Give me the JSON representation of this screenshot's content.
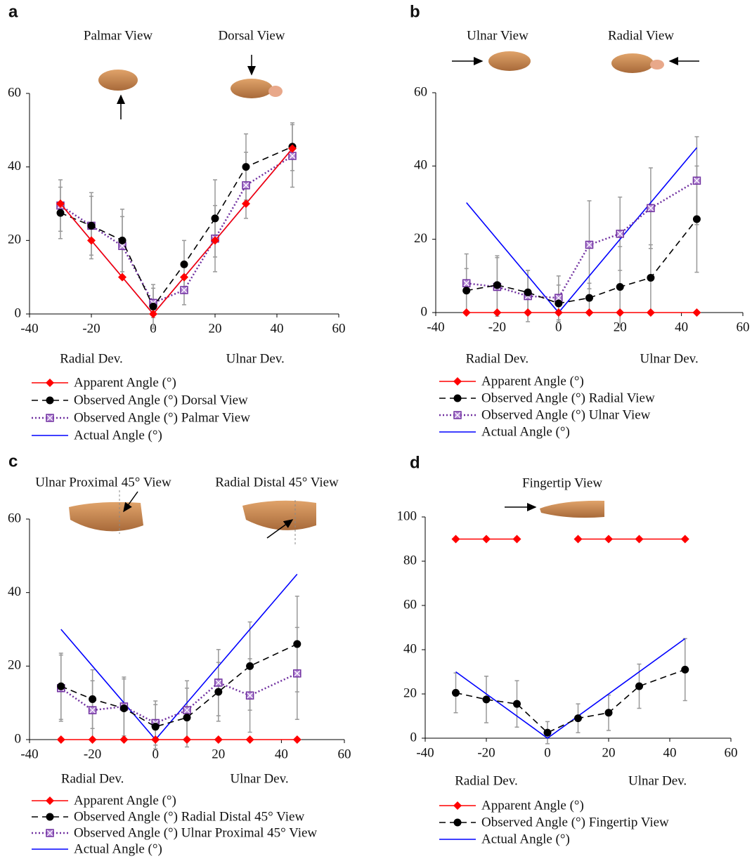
{
  "chart_data": [
    {
      "type": "line",
      "label": "a",
      "annotations": [
        "Palmar View",
        "Dorsal View"
      ],
      "x_annotations": [
        "Radial Dev.",
        "Ulnar Dev."
      ],
      "xlim": [
        -40,
        60
      ],
      "xticks": [
        -40,
        -20,
        0,
        20,
        40,
        60
      ],
      "ylim": [
        0,
        60
      ],
      "yticks": [
        0,
        20,
        40,
        60
      ],
      "series": [
        {
          "name": "Apparent Angle (°)",
          "color": "#ff0000",
          "dash": "solid",
          "marker": "diamond",
          "x": [
            -30,
            -20,
            -10,
            0,
            10,
            20,
            30,
            45
          ],
          "values": [
            30,
            20,
            10,
            0,
            10,
            20,
            30,
            45
          ]
        },
        {
          "name": "Observed Angle (°) Dorsal View",
          "color": "#000000",
          "dash": "dashed",
          "marker": "circle",
          "x": [
            -30,
            -20,
            -10,
            0,
            10,
            20,
            30,
            45
          ],
          "values": [
            27.5,
            24,
            20,
            2,
            13.5,
            26,
            40,
            45.5
          ],
          "errors": [
            7,
            9,
            8.5,
            6,
            6.5,
            10.5,
            9,
            6.5
          ]
        },
        {
          "name": "Observed Angle (°) Palmar View",
          "color": "#7030a0",
          "dash": "dotted",
          "marker": "square",
          "x": [
            -30,
            -20,
            -10,
            0,
            10,
            20,
            30,
            45
          ],
          "values": [
            29.5,
            24,
            18.5,
            3,
            6.5,
            20.5,
            35,
            43
          ],
          "errors": [
            7,
            8,
            8,
            4,
            4,
            9,
            9,
            8.5
          ]
        },
        {
          "name": "Actual Angle (°)",
          "color": "#0000ff",
          "dash": "solid",
          "marker": "none",
          "x": [
            -30,
            -20,
            -10,
            0,
            10,
            20,
            30,
            45
          ],
          "values": [
            30,
            20,
            10,
            0,
            10,
            20,
            30,
            45
          ]
        }
      ]
    },
    {
      "type": "line",
      "label": "b",
      "annotations": [
        "Ulnar View",
        "Radial View"
      ],
      "x_annotations": [
        "Radial Dev.",
        "Ulnar Dev."
      ],
      "xlim": [
        -40,
        60
      ],
      "xticks": [
        -40,
        -20,
        0,
        20,
        40,
        60
      ],
      "ylim": [
        0,
        60
      ],
      "yticks": [
        0,
        20,
        40,
        60
      ],
      "series": [
        {
          "name": "Apparent Angle (°)",
          "color": "#ff0000",
          "dash": "solid",
          "marker": "diamond",
          "x": [
            -30,
            -20,
            -10,
            0,
            10,
            20,
            30,
            45
          ],
          "values": [
            0,
            0,
            0,
            0,
            0,
            0,
            0,
            0
          ]
        },
        {
          "name": "Observed Angle (°) Radial View",
          "color": "#000000",
          "dash": "dashed",
          "marker": "circle",
          "x": [
            -30,
            -20,
            -10,
            0,
            10,
            20,
            30,
            45
          ],
          "values": [
            6,
            7.5,
            5.5,
            2.5,
            4,
            7,
            9.5,
            25.5
          ],
          "errors": [
            6,
            8,
            6,
            5,
            4,
            11,
            9,
            14.5
          ]
        },
        {
          "name": "Observed Angle (°) Ulnar View",
          "color": "#7030a0",
          "dash": "dotted",
          "marker": "square",
          "x": [
            -30,
            -20,
            -10,
            0,
            10,
            20,
            30,
            45
          ],
          "values": [
            8,
            7,
            4.5,
            4,
            18.5,
            21.5,
            28.5,
            36
          ],
          "errors": [
            8,
            8,
            7,
            6,
            12,
            10,
            11,
            12
          ]
        },
        {
          "name": "Actual Angle (°)",
          "color": "#0000ff",
          "dash": "solid",
          "marker": "none",
          "x": [
            -30,
            0,
            45
          ],
          "values": [
            30,
            0,
            45
          ]
        }
      ]
    },
    {
      "type": "line",
      "label": "c",
      "annotations": [
        "Ulnar Proximal 45° View",
        "Radial Distal 45° View"
      ],
      "x_annotations": [
        "Radial Dev.",
        "Ulnar Dev."
      ],
      "xlim": [
        -40,
        60
      ],
      "xticks": [
        -40,
        -20,
        0,
        20,
        40,
        60
      ],
      "ylim": [
        0,
        60
      ],
      "yticks": [
        0,
        20,
        40,
        60
      ],
      "series": [
        {
          "name": "Apparent Angle (°)",
          "color": "#ff0000",
          "dash": "solid",
          "marker": "diamond",
          "x": [
            -30,
            -20,
            -10,
            0,
            10,
            20,
            30,
            45
          ],
          "values": [
            0,
            0,
            0,
            0,
            0,
            0,
            0,
            0
          ]
        },
        {
          "name": "Observed Angle (°) Radial Distal 45° View",
          "color": "#000000",
          "dash": "dashed",
          "marker": "circle",
          "x": [
            -30,
            -20,
            -10,
            0,
            10,
            20,
            30,
            45
          ],
          "values": [
            14.5,
            11,
            8.5,
            3.5,
            6,
            13,
            20,
            26
          ],
          "errors": [
            9,
            8,
            8,
            6,
            8,
            8,
            12,
            13
          ]
        },
        {
          "name": "Observed Angle (°) Ulnar Proximal 45° View",
          "color": "#7030a0",
          "dash": "dotted",
          "marker": "square",
          "x": [
            -30,
            -20,
            -10,
            0,
            10,
            20,
            30,
            45
          ],
          "values": [
            14,
            8,
            9,
            4.5,
            8,
            15.5,
            12,
            18
          ],
          "errors": [
            9,
            8,
            8,
            6,
            8,
            9,
            10,
            12.5
          ]
        },
        {
          "name": "Actual Angle (°)",
          "color": "#0000ff",
          "dash": "solid",
          "marker": "none",
          "x": [
            -30,
            0,
            45
          ],
          "values": [
            30,
            0,
            45
          ]
        }
      ]
    },
    {
      "type": "line",
      "label": "d",
      "annotations": [
        "Fingertip View"
      ],
      "x_annotations": [
        "Radial Dev.",
        "Ulnar Dev."
      ],
      "xlim": [
        -40,
        60
      ],
      "xticks": [
        -40,
        -20,
        0,
        20,
        40,
        60
      ],
      "ylim": [
        0,
        100
      ],
      "yticks": [
        0,
        20,
        40,
        60,
        80,
        100
      ],
      "series": [
        {
          "name": "Apparent Angle (°)",
          "color": "#ff0000",
          "dash": "solid",
          "marker": "diamond",
          "x": [
            -30,
            -20,
            -10,
            0,
            10,
            20,
            30,
            45
          ],
          "values": [
            90,
            90,
            90,
            null,
            90,
            90,
            90,
            90
          ]
        },
        {
          "name": "Observed Angle (°) Fingertip View",
          "color": "#000000",
          "dash": "dashed",
          "marker": "circle",
          "x": [
            -30,
            -20,
            -10,
            0,
            10,
            20,
            30,
            45
          ],
          "values": [
            20.5,
            17.5,
            15.5,
            2.5,
            9,
            11.5,
            23.5,
            31
          ],
          "errors": [
            9,
            10.5,
            10.5,
            5,
            6.5,
            8,
            10,
            14
          ]
        },
        {
          "name": "Actual Angle (°)",
          "color": "#0000ff",
          "dash": "solid",
          "marker": "none",
          "x": [
            -30,
            0,
            45
          ],
          "values": [
            30,
            0,
            45
          ]
        }
      ]
    }
  ]
}
